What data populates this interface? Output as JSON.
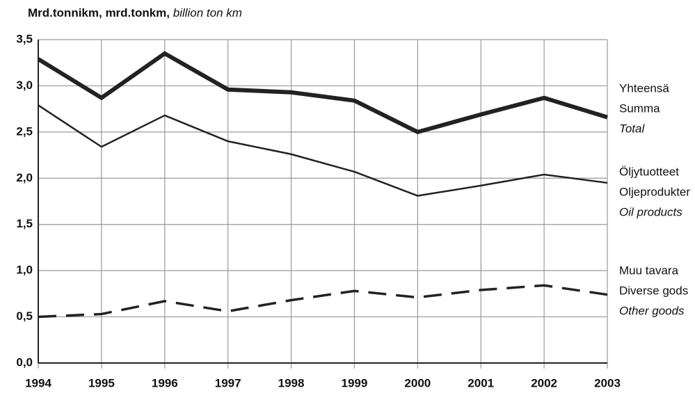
{
  "chart_data": {
    "type": "line",
    "title": [
      "Mrd.tonnikm, mrd.tonkm,",
      "billion ton km"
    ],
    "x": [
      1994,
      1995,
      1996,
      1997,
      1998,
      1999,
      2000,
      2001,
      2002,
      2003
    ],
    "xlim": [
      1994,
      2003
    ],
    "xticks": [
      1994,
      1995,
      1996,
      1997,
      1998,
      1999,
      2000,
      2001,
      2002,
      2003
    ],
    "ylim": [
      0,
      3.5
    ],
    "yticks": [
      {
        "value": 0,
        "label": "0,0"
      },
      {
        "value": 0.5,
        "label": "0,5"
      },
      {
        "value": 1,
        "label": "1,0"
      },
      {
        "value": 1.5,
        "label": "1,5"
      },
      {
        "value": 2,
        "label": "2,0"
      },
      {
        "value": 2.5,
        "label": "2,5"
      },
      {
        "value": 3,
        "label": "3,0"
      },
      {
        "value": 3.5,
        "label": "3,5"
      }
    ],
    "grid": true,
    "series": [
      {
        "name": [
          "Yhteensä",
          "Summa",
          "Total"
        ],
        "color": "#222",
        "style": "thick",
        "values": [
          3.29,
          2.87,
          3.35,
          2.96,
          2.93,
          2.84,
          2.5,
          2.69,
          2.87,
          2.66
        ]
      },
      {
        "name": [
          "Öljytuotteet",
          "Oljeprodukter",
          "Oil products"
        ],
        "color": "#222",
        "style": "solid",
        "values": [
          2.79,
          2.34,
          2.68,
          2.4,
          2.26,
          2.07,
          1.81,
          1.92,
          2.04,
          1.95
        ]
      },
      {
        "name": [
          "Muu tavara",
          "Diverse gods",
          "Other goods"
        ],
        "color": "#222",
        "style": "dashed",
        "values": [
          0.5,
          0.53,
          0.67,
          0.56,
          0.68,
          0.78,
          0.71,
          0.79,
          0.84,
          0.74
        ]
      }
    ]
  }
}
